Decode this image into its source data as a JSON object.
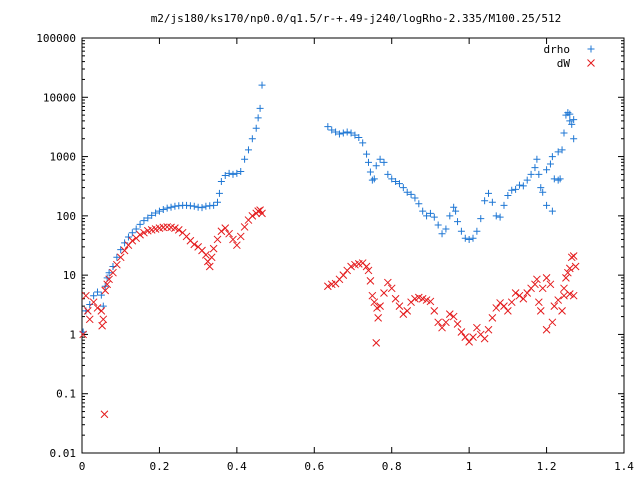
{
  "chart_data": {
    "type": "scatter",
    "title": "m2/js180/ks170/np0.0/q1.5/r-+.49-j240/logRho-2.335/M100.25/512",
    "xlabel": "",
    "ylabel": "",
    "xlim": [
      0,
      1.4
    ],
    "ylim": [
      0.01,
      100000
    ],
    "yscale": "log",
    "grid": false,
    "legend_position": "top-right",
    "x_ticks": [
      "0",
      "0.2",
      "0.4",
      "0.6",
      "0.8",
      "1",
      "1.2",
      "1.4"
    ],
    "y_ticks": [
      "0.01",
      "0.1",
      "1",
      "10",
      "100",
      "1000",
      "10000",
      "100000"
    ],
    "series": [
      {
        "name": "drho",
        "marker": "plus",
        "color": "#1f77d4",
        "points": [
          [
            0.003,
            1.1
          ],
          [
            0.01,
            2.5
          ],
          [
            0.02,
            3.2
          ],
          [
            0.03,
            4.5
          ],
          [
            0.04,
            5.2
          ],
          [
            0.05,
            4.6
          ],
          [
            0.055,
            3.0
          ],
          [
            0.06,
            6.5
          ],
          [
            0.065,
            9
          ],
          [
            0.07,
            11
          ],
          [
            0.08,
            14
          ],
          [
            0.09,
            20
          ],
          [
            0.1,
            27
          ],
          [
            0.11,
            35
          ],
          [
            0.12,
            44
          ],
          [
            0.13,
            52
          ],
          [
            0.14,
            60
          ],
          [
            0.15,
            72
          ],
          [
            0.16,
            83
          ],
          [
            0.17,
            92
          ],
          [
            0.18,
            102
          ],
          [
            0.19,
            112
          ],
          [
            0.2,
            120
          ],
          [
            0.21,
            128
          ],
          [
            0.22,
            135
          ],
          [
            0.23,
            140
          ],
          [
            0.24,
            145
          ],
          [
            0.25,
            148
          ],
          [
            0.26,
            150
          ],
          [
            0.27,
            150
          ],
          [
            0.28,
            148
          ],
          [
            0.29,
            145
          ],
          [
            0.3,
            140
          ],
          [
            0.31,
            138
          ],
          [
            0.32,
            145
          ],
          [
            0.33,
            148
          ],
          [
            0.34,
            150
          ],
          [
            0.35,
            170
          ],
          [
            0.355,
            240
          ],
          [
            0.36,
            380
          ],
          [
            0.37,
            480
          ],
          [
            0.38,
            520
          ],
          [
            0.39,
            500
          ],
          [
            0.4,
            520
          ],
          [
            0.41,
            560
          ],
          [
            0.42,
            900
          ],
          [
            0.43,
            1300
          ],
          [
            0.44,
            2000
          ],
          [
            0.45,
            3000
          ],
          [
            0.455,
            4500
          ],
          [
            0.46,
            6500
          ],
          [
            0.465,
            16000
          ],
          [
            0.635,
            3200
          ],
          [
            0.645,
            2800
          ],
          [
            0.655,
            2600
          ],
          [
            0.665,
            2400
          ],
          [
            0.675,
            2500
          ],
          [
            0.685,
            2600
          ],
          [
            0.695,
            2500
          ],
          [
            0.705,
            2300
          ],
          [
            0.715,
            2100
          ],
          [
            0.725,
            1700
          ],
          [
            0.735,
            1100
          ],
          [
            0.74,
            800
          ],
          [
            0.745,
            550
          ],
          [
            0.75,
            400
          ],
          [
            0.755,
            420
          ],
          [
            0.76,
            700
          ],
          [
            0.77,
            900
          ],
          [
            0.78,
            800
          ],
          [
            0.79,
            500
          ],
          [
            0.8,
            420
          ],
          [
            0.81,
            380
          ],
          [
            0.82,
            350
          ],
          [
            0.83,
            300
          ],
          [
            0.84,
            250
          ],
          [
            0.85,
            230
          ],
          [
            0.86,
            200
          ],
          [
            0.87,
            160
          ],
          [
            0.88,
            120
          ],
          [
            0.89,
            100
          ],
          [
            0.9,
            110
          ],
          [
            0.91,
            95
          ],
          [
            0.92,
            70
          ],
          [
            0.93,
            50
          ],
          [
            0.94,
            60
          ],
          [
            0.95,
            100
          ],
          [
            0.96,
            140
          ],
          [
            0.965,
            120
          ],
          [
            0.97,
            80
          ],
          [
            0.98,
            55
          ],
          [
            0.99,
            42
          ],
          [
            1.0,
            40
          ],
          [
            1.01,
            42
          ],
          [
            1.02,
            55
          ],
          [
            1.03,
            90
          ],
          [
            1.04,
            180
          ],
          [
            1.05,
            240
          ],
          [
            1.06,
            170
          ],
          [
            1.07,
            100
          ],
          [
            1.08,
            95
          ],
          [
            1.09,
            150
          ],
          [
            1.1,
            220
          ],
          [
            1.11,
            270
          ],
          [
            1.12,
            280
          ],
          [
            1.13,
            330
          ],
          [
            1.14,
            320
          ],
          [
            1.15,
            400
          ],
          [
            1.16,
            500
          ],
          [
            1.17,
            650
          ],
          [
            1.175,
            900
          ],
          [
            1.18,
            500
          ],
          [
            1.185,
            300
          ],
          [
            1.19,
            250
          ],
          [
            1.2,
            600
          ],
          [
            1.21,
            750
          ],
          [
            1.215,
            1000
          ],
          [
            1.22,
            420
          ],
          [
            1.23,
            400
          ],
          [
            1.24,
            1300
          ],
          [
            1.245,
            2500
          ],
          [
            1.25,
            5000
          ],
          [
            1.255,
            5500
          ],
          [
            1.26,
            4000
          ],
          [
            1.265,
            3500
          ],
          [
            1.27,
            2000
          ],
          [
            1.23,
            1200
          ],
          [
            1.2,
            150
          ],
          [
            1.215,
            120
          ],
          [
            1.235,
            420
          ],
          [
            1.26,
            5200
          ],
          [
            1.27,
            4200
          ]
        ]
      },
      {
        "name": "dW",
        "marker": "cross",
        "color": "#e41a1c",
        "points": [
          [
            0.003,
            1.0
          ],
          [
            0.01,
            4.5
          ],
          [
            0.015,
            2.5
          ],
          [
            0.02,
            1.8
          ],
          [
            0.03,
            3.5
          ],
          [
            0.04,
            2.8
          ],
          [
            0.05,
            2.5
          ],
          [
            0.052,
            1.4
          ],
          [
            0.055,
            1.8
          ],
          [
            0.058,
            0.045
          ],
          [
            0.06,
            5.5
          ],
          [
            0.065,
            7
          ],
          [
            0.07,
            8.5
          ],
          [
            0.08,
            11
          ],
          [
            0.09,
            15
          ],
          [
            0.1,
            20
          ],
          [
            0.11,
            26
          ],
          [
            0.12,
            32
          ],
          [
            0.13,
            38
          ],
          [
            0.14,
            42
          ],
          [
            0.15,
            48
          ],
          [
            0.16,
            52
          ],
          [
            0.17,
            56
          ],
          [
            0.18,
            58
          ],
          [
            0.19,
            60
          ],
          [
            0.2,
            62
          ],
          [
            0.21,
            64
          ],
          [
            0.22,
            65
          ],
          [
            0.23,
            64
          ],
          [
            0.24,
            62
          ],
          [
            0.25,
            58
          ],
          [
            0.26,
            52
          ],
          [
            0.27,
            45
          ],
          [
            0.28,
            38
          ],
          [
            0.29,
            33
          ],
          [
            0.3,
            30
          ],
          [
            0.31,
            26
          ],
          [
            0.32,
            22
          ],
          [
            0.325,
            17
          ],
          [
            0.33,
            14
          ],
          [
            0.335,
            20
          ],
          [
            0.34,
            28
          ],
          [
            0.35,
            40
          ],
          [
            0.36,
            55
          ],
          [
            0.37,
            62
          ],
          [
            0.38,
            50
          ],
          [
            0.39,
            40
          ],
          [
            0.4,
            32
          ],
          [
            0.41,
            45
          ],
          [
            0.42,
            65
          ],
          [
            0.43,
            85
          ],
          [
            0.44,
            100
          ],
          [
            0.45,
            110
          ],
          [
            0.455,
            120
          ],
          [
            0.46,
            125
          ],
          [
            0.465,
            110
          ],
          [
            0.635,
            6.5
          ],
          [
            0.645,
            7
          ],
          [
            0.655,
            7.2
          ],
          [
            0.665,
            8.5
          ],
          [
            0.675,
            10
          ],
          [
            0.685,
            12
          ],
          [
            0.695,
            14
          ],
          [
            0.705,
            15
          ],
          [
            0.715,
            15.5
          ],
          [
            0.725,
            16
          ],
          [
            0.735,
            14
          ],
          [
            0.74,
            12
          ],
          [
            0.745,
            8
          ],
          [
            0.75,
            4.5
          ],
          [
            0.755,
            3.5
          ],
          [
            0.76,
            0.72
          ],
          [
            0.762,
            2.8
          ],
          [
            0.765,
            1.9
          ],
          [
            0.77,
            3
          ],
          [
            0.78,
            5
          ],
          [
            0.79,
            7.5
          ],
          [
            0.8,
            6
          ],
          [
            0.81,
            4
          ],
          [
            0.82,
            3
          ],
          [
            0.83,
            2.2
          ],
          [
            0.84,
            2.5
          ],
          [
            0.85,
            3.5
          ],
          [
            0.86,
            4
          ],
          [
            0.87,
            4.2
          ],
          [
            0.88,
            4
          ],
          [
            0.89,
            3.8
          ],
          [
            0.9,
            3.6
          ],
          [
            0.91,
            2.5
          ],
          [
            0.92,
            1.6
          ],
          [
            0.93,
            1.3
          ],
          [
            0.94,
            1.6
          ],
          [
            0.95,
            2.2
          ],
          [
            0.96,
            2.0
          ],
          [
            0.97,
            1.5
          ],
          [
            0.98,
            1.1
          ],
          [
            0.99,
            0.9
          ],
          [
            1.0,
            0.75
          ],
          [
            1.01,
            0.9
          ],
          [
            1.02,
            1.3
          ],
          [
            1.03,
            1.0
          ],
          [
            1.04,
            0.85
          ],
          [
            1.05,
            1.2
          ],
          [
            1.06,
            1.9
          ],
          [
            1.07,
            2.8
          ],
          [
            1.08,
            3.4
          ],
          [
            1.09,
            3.0
          ],
          [
            1.1,
            2.5
          ],
          [
            1.11,
            3.5
          ],
          [
            1.12,
            5
          ],
          [
            1.13,
            4.5
          ],
          [
            1.14,
            4
          ],
          [
            1.15,
            5
          ],
          [
            1.16,
            6
          ],
          [
            1.17,
            7
          ],
          [
            1.175,
            8.5
          ],
          [
            1.18,
            3.5
          ],
          [
            1.185,
            2.5
          ],
          [
            1.19,
            6
          ],
          [
            1.2,
            9
          ],
          [
            1.21,
            7
          ],
          [
            1.215,
            1.6
          ],
          [
            1.22,
            3
          ],
          [
            1.23,
            3.8
          ],
          [
            1.24,
            2.5
          ],
          [
            1.245,
            6
          ],
          [
            1.25,
            9
          ],
          [
            1.255,
            11
          ],
          [
            1.26,
            13
          ],
          [
            1.265,
            20
          ],
          [
            1.27,
            21
          ],
          [
            1.275,
            14
          ],
          [
            1.2,
            1.2
          ],
          [
            1.245,
            4.5
          ],
          [
            1.26,
            4.8
          ],
          [
            1.27,
            4.5
          ]
        ]
      }
    ]
  }
}
